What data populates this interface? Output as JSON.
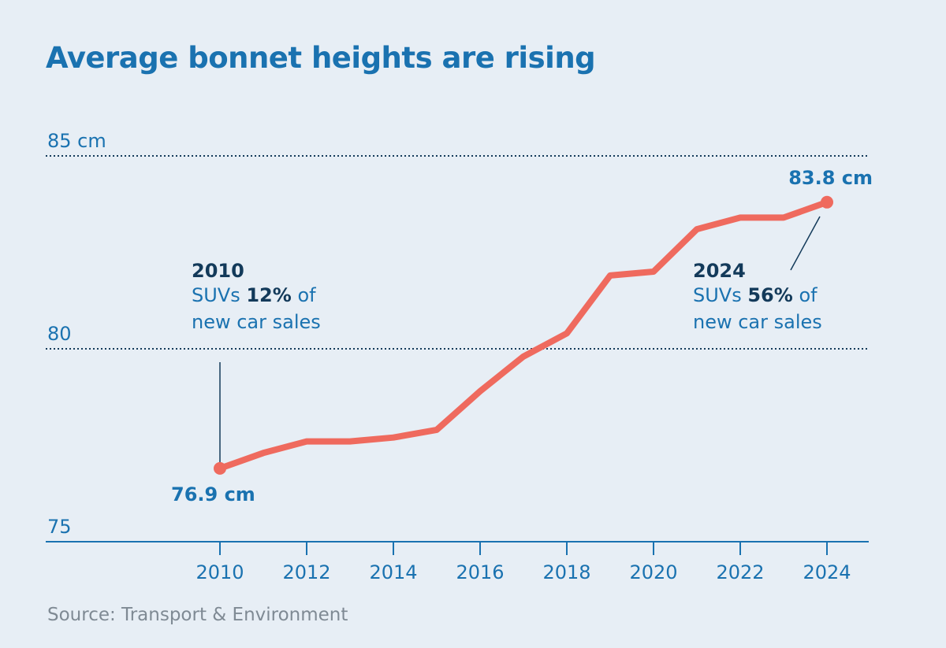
{
  "title": "Average bonnet heights are rising",
  "source": "Source: Transport & Environment",
  "colors": {
    "background": "#e7eef5",
    "accent": "#1a72b0",
    "dark": "#133a5a",
    "line": "#ef6a5e",
    "source_text": "#7f8a94"
  },
  "chart_data": {
    "type": "line",
    "title": "Average bonnet heights are rising",
    "xlabel": "",
    "ylabel": "",
    "x": [
      2010,
      2011,
      2012,
      2013,
      2014,
      2015,
      2016,
      2017,
      2018,
      2019,
      2020,
      2021,
      2022,
      2023,
      2024
    ],
    "series": [
      {
        "values": [
          76.9,
          77.3,
          77.6,
          77.6,
          77.7,
          77.9,
          78.9,
          79.8,
          80.4,
          81.9,
          82.0,
          83.1,
          83.4,
          83.4,
          83.8
        ]
      }
    ],
    "ylim": [
      75,
      85
    ],
    "xlim": [
      2008,
      2025
    ],
    "y_ticks": [
      {
        "value": 85,
        "label": "85 cm"
      },
      {
        "value": 80,
        "label": "80"
      },
      {
        "value": 75,
        "label": "75"
      }
    ],
    "x_ticks": [
      {
        "value": 2010,
        "label": "2010"
      },
      {
        "value": 2012,
        "label": "2012"
      },
      {
        "value": 2014,
        "label": "2014"
      },
      {
        "value": 2016,
        "label": "2016"
      },
      {
        "value": 2018,
        "label": "2018"
      },
      {
        "value": 2020,
        "label": "2020"
      },
      {
        "value": 2022,
        "label": "2022"
      },
      {
        "value": 2024,
        "label": "2024"
      }
    ],
    "gridlines": "dotted at 80 and 85",
    "point_labels": [
      {
        "x": 2010,
        "y": 76.9,
        "label": "76.9 cm"
      },
      {
        "x": 2024,
        "y": 83.8,
        "label": "83.8 cm"
      }
    ],
    "annotations": [
      {
        "x": 2010,
        "year": "2010",
        "line1_pre": "SUVs ",
        "line1_bold": "12%",
        "line1_post": " of",
        "line2": "new car sales"
      },
      {
        "x": 2024,
        "year": "2024",
        "line1_pre": "SUVs ",
        "line1_bold": "56%",
        "line1_post": " of",
        "line2": "new car sales"
      }
    ]
  }
}
